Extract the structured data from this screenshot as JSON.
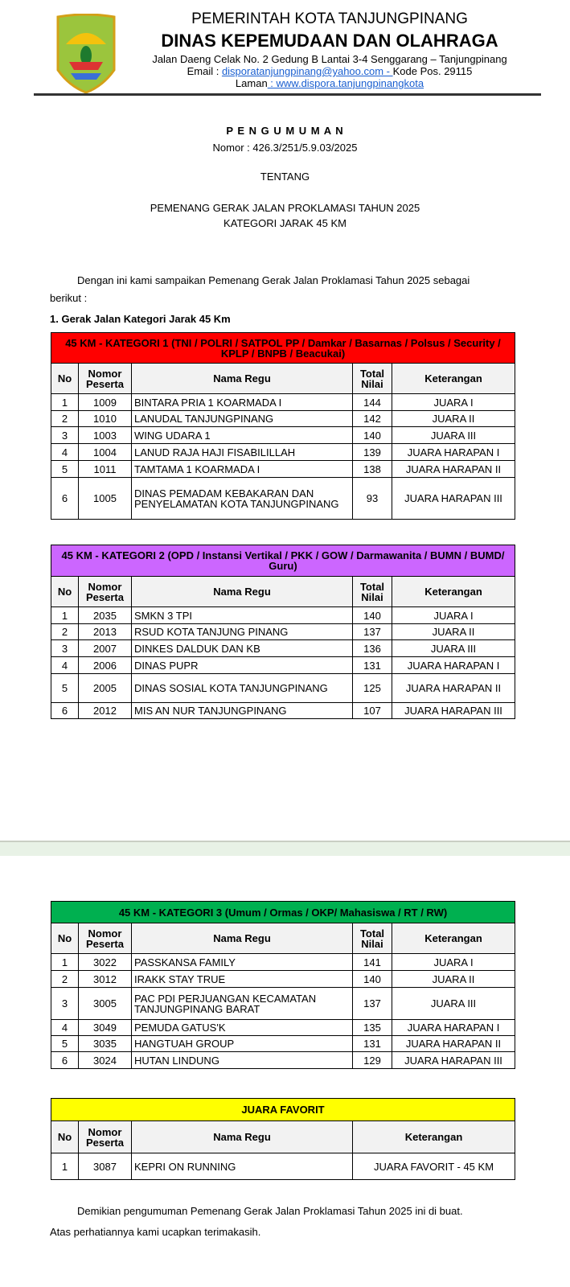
{
  "letterhead": {
    "line1": "PEMERINTAH KOTA TANJUNGPINANG",
    "line2": "DINAS KEPEMUDAAN DAN OLAHRAGA",
    "address": "Jalan Daeng Celak No. 2 Gedung B Lantai 3-4 Senggarang – Tanjungpinang",
    "email_label": "Email : ",
    "email": "disporatanjungpinang@yahoo.com - ",
    "postal": "Kode Pos. 29115",
    "web_label": "Laman",
    "web": " : www.dispora.tanjungpinangkota",
    "logo_text": "KOTA TANJUNGPINANG"
  },
  "announcement": {
    "heading": "P E N G U M U M A N",
    "number": "Nomor : 426.3/251/5.9.03/2025",
    "about": "TENTANG",
    "subject1": "PEMENANG GERAK JALAN PROKLAMASI TAHUN 2025",
    "subject2": "KATEGORI JARAK 45 KM",
    "intro1": "Dengan ini kami sampaikan Pemenang Gerak Jalan Proklamasi Tahun 2025 sebagai",
    "intro2": "berikut :",
    "section": "1. Gerak Jalan Kategori Jarak 45 Km",
    "closing1": "Demikian pengumuman Pemenang Gerak Jalan Proklamasi Tahun 2025 ini di buat.",
    "closing2": "Atas perhatiannya kami ucapkan terimakasih."
  },
  "headers": {
    "no": "No",
    "nomor": "Nomor Peserta",
    "nama": "Nama Regu",
    "total": "Total Nilai",
    "ket": "Keterangan"
  },
  "tables": [
    {
      "title": "45 KM - KATEGORI 1 (TNI / POLRI / SATPOL PP / Damkar / Basarnas / Polsus / Security / KPLP / BNPB / Beacukai)",
      "color": "#ff0000",
      "rows": [
        [
          "1",
          "1009",
          "BINTARA PRIA 1 KOARMADA I",
          "144",
          "JUARA I"
        ],
        [
          "2",
          "1010",
          "LANUDAL TANJUNGPINANG",
          "142",
          "JUARA II"
        ],
        [
          "3",
          "1003",
          "WING UDARA 1",
          "140",
          "JUARA III"
        ],
        [
          "4",
          "1004",
          "LANUD RAJA HAJI FISABILILLAH",
          "139",
          "JUARA HARAPAN I"
        ],
        [
          "5",
          "1011",
          "TAMTAMA 1 KOARMADA I",
          "138",
          "JUARA HARAPAN II"
        ],
        [
          "6",
          "1005",
          "DINAS PEMADAM KEBAKARAN DAN PENYELAMATAN KOTA TANJUNGPINANG",
          "93",
          "JUARA HARAPAN III"
        ]
      ]
    },
    {
      "title": "45 KM - KATEGORI 2 (OPD / Instansi Vertikal / PKK / GOW / Darmawanita / BUMN / BUMD/ Guru)",
      "color": "#cc66ff",
      "rows": [
        [
          "1",
          "2035",
          "SMKN 3 TPI",
          "140",
          "JUARA I"
        ],
        [
          "2",
          "2013",
          "RSUD KOTA TANJUNG PINANG",
          "137",
          "JUARA II"
        ],
        [
          "3",
          "2007",
          "DINKES DALDUK DAN KB",
          "136",
          "JUARA III"
        ],
        [
          "4",
          "2006",
          "DINAS PUPR",
          "131",
          "JUARA HARAPAN I"
        ],
        [
          "5",
          "2005",
          "DINAS SOSIAL KOTA TANJUNGPINANG",
          "125",
          "JUARA HARAPAN II"
        ],
        [
          "6",
          "2012",
          "MIS AN NUR TANJUNGPINANG",
          "107",
          "JUARA HARAPAN III"
        ]
      ]
    },
    {
      "title": "45 KM - KATEGORI 3 (Umum / Ormas / OKP/ Mahasiswa / RT / RW)",
      "color": "#00b050",
      "rows": [
        [
          "1",
          "3022",
          "PASSKANSA FAMILY",
          "141",
          "JUARA I"
        ],
        [
          "2",
          "3012",
          "IRAKK STAY TRUE",
          "140",
          "JUARA II"
        ],
        [
          "3",
          "3005",
          "PAC PDI PERJUANGAN KECAMATAN TANJUNGPINANG BARAT",
          "137",
          "JUARA III"
        ],
        [
          "4",
          "3049",
          "PEMUDA GATUS'K",
          "135",
          "JUARA HARAPAN I"
        ],
        [
          "5",
          "3035",
          "HANGTUAH GROUP",
          "131",
          "JUARA HARAPAN II"
        ],
        [
          "6",
          "3024",
          "HUTAN LINDUNG",
          "129",
          "JUARA HARAPAN III"
        ]
      ]
    }
  ],
  "favorit": {
    "title": "JUARA FAVORIT",
    "color": "#ffff00",
    "rows": [
      [
        "1",
        "3087",
        "KEPRI ON RUNNING",
        "JUARA FAVORIT - 45 KM"
      ]
    ]
  }
}
